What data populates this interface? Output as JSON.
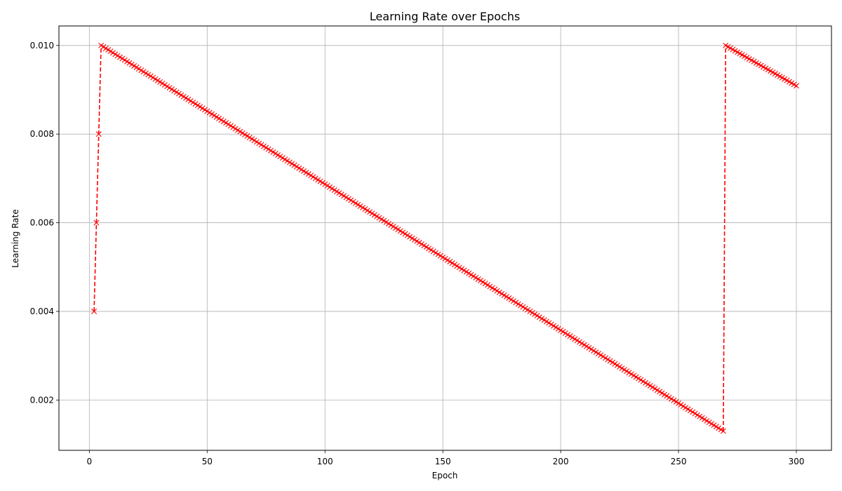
{
  "chart_data": {
    "type": "line",
    "title": "Learning Rate over Epochs",
    "xlabel": "Epoch",
    "ylabel": "Learning Rate",
    "xlim": [
      -12.9,
      314.9
    ],
    "ylim": [
      0.000865,
      0.01044
    ],
    "xticks": [
      0,
      50,
      100,
      150,
      200,
      250,
      300
    ],
    "xtick_labels": [
      "0",
      "50",
      "100",
      "150",
      "200",
      "250",
      "300"
    ],
    "yticks": [
      0.002,
      0.004,
      0.006,
      0.008,
      0.01
    ],
    "ytick_labels": [
      "0.002",
      "0.004",
      "0.006",
      "0.008",
      "0.010"
    ],
    "grid": true,
    "legend": "none",
    "series": [
      {
        "color": "#ff0000",
        "line_style": "dashed",
        "marker": "x",
        "segments": [
          {
            "x_start": 2,
            "x_end": 5,
            "y_start": 0.004,
            "y_end": 0.01,
            "description": "warmup ramp"
          },
          {
            "x_start": 5,
            "x_end": 269,
            "y_start": 0.01,
            "y_end": 0.0013,
            "description": "linear decay"
          },
          {
            "x_start": 270,
            "x_end": 300,
            "y_start": 0.01,
            "y_end": 0.00909,
            "description": "restart decay"
          }
        ]
      }
    ]
  }
}
